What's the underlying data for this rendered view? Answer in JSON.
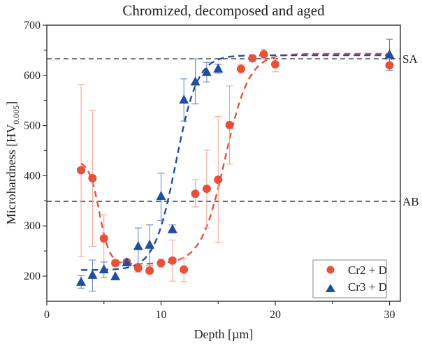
{
  "chart_data": {
    "type": "scatter",
    "title": "Chromized, decomposed and aged",
    "xlabel": "Depth [µm]",
    "ylabel": "Microhardness [HV",
    "ylabel_subscript": "0.005",
    "ylabel_suffix": "]",
    "xlim": [
      0,
      31
    ],
    "ylim": [
      150,
      700
    ],
    "xticks": [
      0,
      10,
      20,
      30
    ],
    "xticks_minor": [
      5,
      15,
      25
    ],
    "yticks": [
      200,
      300,
      400,
      500,
      600,
      700
    ],
    "yticks_minor": [
      250,
      350,
      450,
      550,
      650
    ],
    "grid": false,
    "legend_position": "bottom-right",
    "reference_lines": [
      {
        "label": "SA",
        "y": 633,
        "color": "#333333"
      },
      {
        "label": "AB",
        "y": 349,
        "color": "#333333"
      }
    ],
    "series": [
      {
        "name": "Cr2 + D",
        "marker": "circle",
        "color": "#e8503a",
        "error_color": "#f0a090",
        "points": [
          {
            "x": 3,
            "y": 411,
            "lo": 239,
            "hi": 582
          },
          {
            "x": 4,
            "y": 395,
            "lo": 259,
            "hi": 530
          },
          {
            "x": 5,
            "y": 275,
            "lo": 228,
            "hi": 322
          },
          {
            "x": 6,
            "y": 226,
            "lo": 220,
            "hi": 232
          },
          {
            "x": 7,
            "y": 228,
            "lo": 222,
            "hi": 234
          },
          {
            "x": 8,
            "y": 216,
            "lo": 208,
            "hi": 224
          },
          {
            "x": 9,
            "y": 211,
            "lo": 205,
            "hi": 217
          },
          {
            "x": 10,
            "y": 226,
            "lo": 218,
            "hi": 234
          },
          {
            "x": 11,
            "y": 231,
            "lo": 190,
            "hi": 272
          },
          {
            "x": 12,
            "y": 213,
            "lo": 189,
            "hi": 236
          },
          {
            "x": 13,
            "y": 364,
            "lo": 338,
            "hi": 392
          },
          {
            "x": 14,
            "y": 374,
            "lo": 296,
            "hi": 451
          },
          {
            "x": 15,
            "y": 392,
            "lo": 267,
            "hi": 518
          },
          {
            "x": 16,
            "y": 501,
            "lo": 423,
            "hi": 579
          },
          {
            "x": 17,
            "y": 613,
            "lo": 605,
            "hi": 622
          },
          {
            "x": 18,
            "y": 634,
            "lo": 628,
            "hi": 640
          },
          {
            "x": 19,
            "y": 642,
            "lo": 632,
            "hi": 652
          },
          {
            "x": 20,
            "y": 622,
            "lo": 607,
            "hi": 637
          },
          {
            "x": 30,
            "y": 620,
            "lo": 610,
            "hi": 631
          }
        ],
        "fit": {
          "type": "decay-then-sigmoid",
          "start": 430,
          "floor": 224,
          "decay_center": 4.6,
          "decay_width": 0.45,
          "top": 643,
          "rise_center": 15.6,
          "rise_width": 1.05
        }
      },
      {
        "name": "Cr3 + D",
        "marker": "triangle",
        "color": "#1f4fa0",
        "error_color": "#5f7fc0",
        "points": [
          {
            "x": 3,
            "y": 189,
            "lo": 176,
            "hi": 201
          },
          {
            "x": 4,
            "y": 203,
            "lo": 170,
            "hi": 232
          },
          {
            "x": 5,
            "y": 214,
            "lo": 197,
            "hi": 228
          },
          {
            "x": 6,
            "y": 200,
            "lo": 200,
            "hi": 200
          },
          {
            "x": 7,
            "y": 228,
            "lo": 222,
            "hi": 233
          },
          {
            "x": 8,
            "y": 260,
            "lo": 221,
            "hi": 296
          },
          {
            "x": 9,
            "y": 263,
            "lo": 221,
            "hi": 302
          },
          {
            "x": 10,
            "y": 360,
            "lo": 311,
            "hi": 405
          },
          {
            "x": 11,
            "y": 294,
            "lo": 286,
            "hi": 302
          },
          {
            "x": 12,
            "y": 552,
            "lo": 509,
            "hi": 593
          },
          {
            "x": 13,
            "y": 588,
            "lo": 543,
            "hi": 633
          },
          {
            "x": 14,
            "y": 607,
            "lo": 587,
            "hi": 626
          },
          {
            "x": 15,
            "y": 614,
            "lo": 604,
            "hi": 622
          },
          {
            "x": 30,
            "y": 642,
            "lo": 610,
            "hi": 672
          }
        ],
        "fit": {
          "type": "sigmoid",
          "bottom": 212,
          "top": 640,
          "center": 11.3,
          "width": 0.95
        }
      }
    ]
  }
}
